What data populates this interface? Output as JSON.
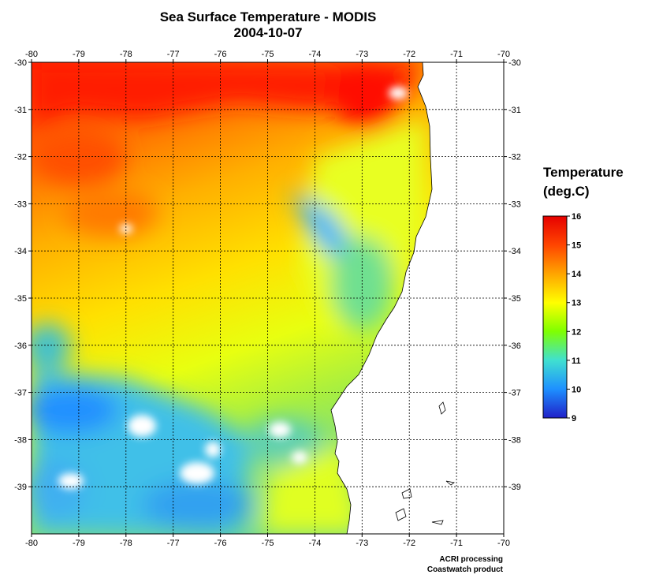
{
  "chart_data": {
    "type": "heatmap",
    "title": "Sea Surface Temperature - MODIS",
    "subtitle": "2004-10-07",
    "x_ticks": [
      "-80",
      "-79",
      "-78",
      "-77",
      "-76",
      "-75",
      "-74",
      "-73",
      "-72",
      "-71",
      "-70"
    ],
    "y_ticks": [
      "-30",
      "-31",
      "-32",
      "-33",
      "-34",
      "-35",
      "-36",
      "-37",
      "-38",
      "-39"
    ],
    "xlim": [
      -80,
      -70
    ],
    "ylim": [
      -40,
      -30
    ],
    "grid": true,
    "colorbar": {
      "title_line1": "Temperature",
      "title_line2": "(deg.C)",
      "ticks": [
        "16",
        "15",
        "14",
        "13",
        "12",
        "11",
        "10",
        "9"
      ],
      "range": [
        9,
        16
      ],
      "colors": [
        "#2020c8",
        "#1e90ff",
        "#40e0d0",
        "#7fff00",
        "#ffff00",
        "#ffa500",
        "#ff4500",
        "#e60000"
      ]
    }
  },
  "credits": {
    "line1": "ACRI processing",
    "line2": "Coastwatch product"
  }
}
